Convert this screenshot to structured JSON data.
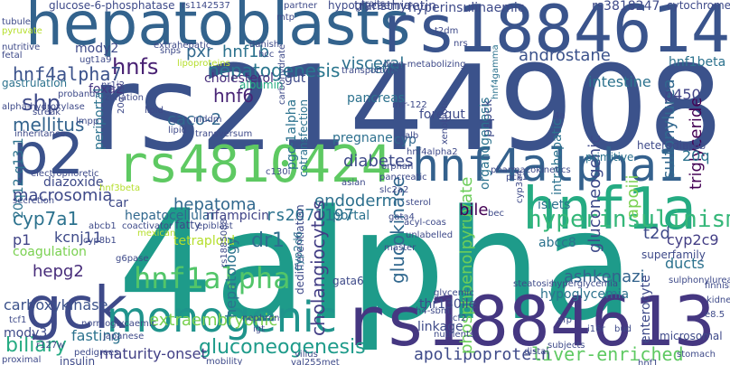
{
  "words": [
    {
      "text": "4alpha",
      "color": "#1e9b8a"
    },
    {
      "text": "rs2144908",
      "color": "#3b528b"
    },
    {
      "text": "hepatoblasts",
      "color": "#33638d"
    },
    {
      "text": "rs1884614",
      "color": "#3a548c"
    },
    {
      "text": "rs1884613",
      "color": "#453781"
    },
    {
      "text": "rs4810424",
      "color": "#5ec962"
    },
    {
      "text": "p2",
      "color": "#3b528b"
    },
    {
      "text": "gck",
      "color": "#3e4a89"
    },
    {
      "text": "hnf4alpha1",
      "color": "#34618d"
    },
    {
      "text": "hnf1a",
      "color": "#25ab82"
    },
    {
      "text": "monogenic",
      "color": "#1f948c"
    },
    {
      "text": "hyperinsulinism",
      "color": "#35b779"
    },
    {
      "text": "hnf1alpha",
      "color": "#52c569"
    },
    {
      "text": "hepatogenesis",
      "color": "#2a768e"
    },
    {
      "text": "gluconeogenesis",
      "color": "#1e9b8a"
    },
    {
      "text": "hnfs",
      "color": "#482173"
    },
    {
      "text": "shp",
      "color": "#3e4a89"
    },
    {
      "text": "cyp7a1",
      "color": "#2c728e"
    },
    {
      "text": "rs2071197",
      "color": "#2c728e"
    },
    {
      "text": "endoderm",
      "color": "#2d708e"
    },
    {
      "text": "dr1",
      "color": "#2e6e8e"
    },
    {
      "text": "hepatoma",
      "color": "#31688e"
    },
    {
      "text": "hepg2",
      "color": "#472c7a"
    },
    {
      "text": "macrosomia",
      "color": "#3e4989"
    },
    {
      "text": "biliary",
      "color": "#25ab82"
    },
    {
      "text": "maturity-onset",
      "color": "#424086"
    },
    {
      "text": "apolipoprotein",
      "color": "#3e4a89"
    },
    {
      "text": "liver-enriched",
      "color": "#5ec962"
    },
    {
      "text": "cholangiocytes",
      "color": "#433e85"
    },
    {
      "text": "glucokinase",
      "color": "#31688e"
    },
    {
      "text": "phosphoenolpyruvate",
      "color": "#6ccd5a"
    },
    {
      "text": "hnf4alpha7",
      "color": "#3b528b"
    },
    {
      "text": "hnf6",
      "color": "#482475"
    },
    {
      "text": "caco-2",
      "color": "#31688e"
    },
    {
      "text": "mellitus",
      "color": "#33638d"
    },
    {
      "text": "foxa2",
      "color": "#453781"
    },
    {
      "text": "mody2",
      "color": "#3e4a89"
    },
    {
      "text": "pxr",
      "color": "#31688e"
    },
    {
      "text": "hnf1b",
      "color": "#2c728e"
    },
    {
      "text": "cholesterol",
      "color": "#472d7b"
    },
    {
      "text": "visceral",
      "color": "#2d708e"
    },
    {
      "text": "androstane",
      "color": "#3b528b"
    },
    {
      "text": "intestine",
      "color": "#2c728e"
    },
    {
      "text": "gluconeogenic",
      "color": "#3e4a89"
    },
    {
      "text": "sulfonylurea",
      "color": "#31688e"
    },
    {
      "text": "triglyceride",
      "color": "#440154"
    },
    {
      "text": "apoiii",
      "color": "#7ad151"
    },
    {
      "text": "p450",
      "color": "#414487"
    },
    {
      "text": "hnf1beta",
      "color": "#2c728e"
    },
    {
      "text": "letfs",
      "color": "#2e6e8e"
    },
    {
      "text": "pancreas",
      "color": "#2c728e"
    },
    {
      "text": "pepck",
      "color": "#3e4a89"
    },
    {
      "text": "diabetes",
      "color": "#3e4a89"
    },
    {
      "text": "pregnane",
      "color": "#2d708e"
    },
    {
      "text": "cyp",
      "color": "#31688e"
    },
    {
      "text": "t2d",
      "color": "#3e4a89"
    },
    {
      "text": "cyp2c9",
      "color": "#433e85"
    },
    {
      "text": "20q",
      "color": "#2c728e"
    },
    {
      "text": "ducts",
      "color": "#2c728e"
    },
    {
      "text": "bile",
      "color": "#440154"
    },
    {
      "text": "portal",
      "color": "#2c728e"
    },
    {
      "text": "islets",
      "color": "#2c728e"
    },
    {
      "text": "ashkenazi",
      "color": "#33638d"
    },
    {
      "text": "hypoglycemia",
      "color": "#2c728e"
    },
    {
      "text": "fasting",
      "color": "#2c728e"
    },
    {
      "text": "extraembryonic",
      "color": "#7ad151"
    },
    {
      "text": "carboxykinase",
      "color": "#3b528b"
    },
    {
      "text": "kcnj11",
      "color": "#3e4a89"
    },
    {
      "text": "p1",
      "color": "#414487"
    },
    {
      "text": "coagulation",
      "color": "#7ad151"
    },
    {
      "text": "tetraploid",
      "color": "#b5de2b"
    },
    {
      "text": "hepatocellular",
      "color": "#31688e"
    },
    {
      "text": "rifampicin",
      "color": "#414487"
    },
    {
      "text": "hepatology",
      "color": "#2c728e"
    },
    {
      "text": "thr130ile",
      "color": "#3e4a89"
    },
    {
      "text": "linkage",
      "color": "#3e4a89"
    },
    {
      "text": "abcc8",
      "color": "#2c728e"
    },
    {
      "text": "enterocyte",
      "color": "#3e4a89"
    },
    {
      "text": "mody3",
      "color": "#3e4a89"
    },
    {
      "text": "insulin",
      "color": "#3e4a89"
    },
    {
      "text": "albumin",
      "color": "#25ab82"
    },
    {
      "text": "hyperinsulinaemic",
      "color": "#3e4a89"
    },
    {
      "text": "rs3818247",
      "color": "#3e4a89"
    },
    {
      "text": "cytochrome",
      "color": "#3e4a89"
    },
    {
      "text": "glucose-6-phosphatase",
      "color": "#3e4a89"
    },
    {
      "text": "transthyretin",
      "color": "#3e4a89"
    },
    {
      "text": "hypoglycaemia",
      "color": "#3e4a89"
    },
    {
      "text": "traits",
      "color": "#3e4a89"
    },
    {
      "text": "20q12-q13.1",
      "color": "#2c728e"
    },
    {
      "text": "diazoxide",
      "color": "#3e4a89"
    },
    {
      "text": "electrophoretic",
      "color": "#3e4a89"
    },
    {
      "text": "coactivator",
      "color": "#3e4a89"
    },
    {
      "text": "epiblast",
      "color": "#3e4a89"
    },
    {
      "text": "intrahepatic",
      "color": "#2c728e"
    },
    {
      "text": "organogenesis",
      "color": "#2c728e"
    },
    {
      "text": "gut",
      "color": "#3e4a89"
    },
    {
      "text": "pgc-1alpha",
      "color": "#2c728e"
    },
    {
      "text": "cotransfection",
      "color": "#2c728e"
    },
    {
      "text": "foregut",
      "color": "#3e4a89"
    },
    {
      "text": "xenobiotic",
      "color": "#3e4a89"
    },
    {
      "text": "primitive",
      "color": "#2c728e"
    },
    {
      "text": "heterodimer",
      "color": "#3e4a89"
    },
    {
      "text": "superfamily",
      "color": "#3e4a89"
    },
    {
      "text": "microsomal",
      "color": "#3e4a89"
    },
    {
      "text": "dedifferentiation",
      "color": "#3e4a89"
    },
    {
      "text": "gata6",
      "color": "#3e4a89"
    },
    {
      "text": "steatosis",
      "color": "#3e4a89"
    },
    {
      "text": "unlabelled",
      "color": "#3e4a89"
    },
    {
      "text": "acyl-coas",
      "color": "#3e4a89"
    },
    {
      "text": "sterol",
      "color": "#3e4a89"
    },
    {
      "text": "pharmacokinetics",
      "color": "#3e4a89"
    },
    {
      "text": "apob",
      "color": "#3e4a89"
    },
    {
      "text": "cyp2d6",
      "color": "#2c728e"
    },
    {
      "text": "cyp8b1",
      "color": "#3e4a89"
    },
    {
      "text": "abcb1",
      "color": "#3e4a89"
    },
    {
      "text": "tcf1",
      "color": "#3e4a89"
    },
    {
      "text": "tcf2",
      "color": "#3e4a89"
    },
    {
      "text": "hnf1",
      "color": "#3e4a89"
    },
    {
      "text": "afp",
      "color": "#3e4a89"
    },
    {
      "text": "stomach",
      "color": "#3e4a89"
    },
    {
      "text": "villus",
      "color": "#3e4a89"
    },
    {
      "text": "nephron",
      "color": "#3e4a89"
    },
    {
      "text": "mobility",
      "color": "#3e4a89"
    },
    {
      "text": "distal",
      "color": "#3e4a89"
    },
    {
      "text": "subjects",
      "color": "#3e4a89"
    },
    {
      "text": "proximal",
      "color": "#3e4a89"
    },
    {
      "text": "lipoproteins",
      "color": "#b5de2b"
    },
    {
      "text": "extrahepatic",
      "color": "#3e4a89"
    },
    {
      "text": "fatty",
      "color": "#3e4a89"
    },
    {
      "text": "car",
      "color": "#3e4a89"
    },
    {
      "text": "lipid",
      "color": "#3e4a89"
    },
    {
      "text": "transversum",
      "color": "#3e4a89"
    },
    {
      "text": "niddm",
      "color": "#3e4a89"
    },
    {
      "text": "fetal",
      "color": "#3e4a89"
    },
    {
      "text": "gastrulation",
      "color": "#2c728e"
    },
    {
      "text": "probands",
      "color": "#3e4a89"
    },
    {
      "text": "nutritive",
      "color": "#3e4a89"
    },
    {
      "text": "tubule",
      "color": "#3e4a89"
    },
    {
      "text": "pyruvate",
      "color": "#b5de2b"
    },
    {
      "text": "partner",
      "color": "#3e4a89"
    },
    {
      "text": "hcc",
      "color": "#3e4a89"
    },
    {
      "text": "danish",
      "color": "#3e4a89"
    },
    {
      "text": "snps",
      "color": "#3e4a89"
    },
    {
      "text": "ugt1a9",
      "color": "#3e4a89"
    },
    {
      "text": "20q13",
      "color": "#3e4a89"
    },
    {
      "text": "t2dm",
      "color": "#3e4a89"
    },
    {
      "text": "nrs",
      "color": "#3e4a89"
    },
    {
      "text": "mtp",
      "color": "#3e4a89"
    },
    {
      "text": "transporters",
      "color": "#3e4a89"
    },
    {
      "text": "drug-metabolizing",
      "color": "#3e4a89"
    },
    {
      "text": "carbohydrate",
      "color": "#3e4a89"
    },
    {
      "text": "bec",
      "color": "#3e4a89"
    },
    {
      "text": "cyp3a4",
      "color": "#3e4a89"
    },
    {
      "text": "hnf4gamma",
      "color": "#2c728e"
    },
    {
      "text": "4a",
      "color": "#3e4a89"
    },
    {
      "text": "alb",
      "color": "#3e4a89"
    },
    {
      "text": "mir-122",
      "color": "#3e4a89"
    },
    {
      "text": "pancreatic",
      "color": "#3e4a89"
    },
    {
      "text": "orphan",
      "color": "#3e4a89"
    },
    {
      "text": "zonation",
      "color": "#3e4a89"
    },
    {
      "text": "periportal",
      "color": "#2c728e"
    },
    {
      "text": "hnf3beta",
      "color": "#b5de2b"
    },
    {
      "text": "inheritance",
      "color": "#3e4a89"
    },
    {
      "text": "hyperglycemia",
      "color": "#3e4a89"
    },
    {
      "text": "master",
      "color": "#3e4a89"
    },
    {
      "text": "glycemic",
      "color": "#3e4a89"
    },
    {
      "text": "h4-sbm",
      "color": "#3e4a89"
    },
    {
      "text": "japanese",
      "color": "#3e4a89"
    },
    {
      "text": "igt",
      "color": "#3e4a89"
    },
    {
      "text": "bud",
      "color": "#3e4a89"
    },
    {
      "text": "kidney",
      "color": "#3e4a89"
    },
    {
      "text": "finnish",
      "color": "#3e4a89"
    },
    {
      "text": "sulphonylurea",
      "color": "#3e4a89"
    },
    {
      "text": "e8.5",
      "color": "#3e4a89"
    },
    {
      "text": "rs1885088",
      "color": "#3e4a89"
    },
    {
      "text": "g6pase",
      "color": "#3e4a89"
    },
    {
      "text": "normoglycaemic",
      "color": "#3e4a89"
    },
    {
      "text": "r127w",
      "color": "#3e4a89"
    },
    {
      "text": "val255met",
      "color": "#3e4a89"
    },
    {
      "text": "pedigrees",
      "color": "#3e4a89"
    },
    {
      "text": "nutrients",
      "color": "#3e4a89"
    },
    {
      "text": "secretion",
      "color": "#3e4a89"
    },
    {
      "text": "mexican",
      "color": "#b5de2b"
    },
    {
      "text": "hnf4alpha2",
      "color": "#3e4a89"
    },
    {
      "text": "gata4",
      "color": "#3e4a89"
    },
    {
      "text": "asian",
      "color": "#3e4a89"
    },
    {
      "text": "pck1",
      "color": "#3e4a89"
    },
    {
      "text": "slc2a2",
      "color": "#3e4a89"
    },
    {
      "text": "i16r",
      "color": "#3e4a89"
    },
    {
      "text": "lipid",
      "color": "#3e4a89"
    },
    {
      "text": "nr1i2",
      "color": "#3e4a89"
    },
    {
      "text": "streak",
      "color": "#3e4a89"
    },
    {
      "text": "alpha-hydroxylase",
      "color": "#3e4a89"
    },
    {
      "text": "lmpp",
      "color": "#3e4a89"
    },
    {
      "text": "c130i",
      "color": "#3e4a89"
    },
    {
      "text": "rs1142537",
      "color": "#3e4a89"
    }
  ]
}
